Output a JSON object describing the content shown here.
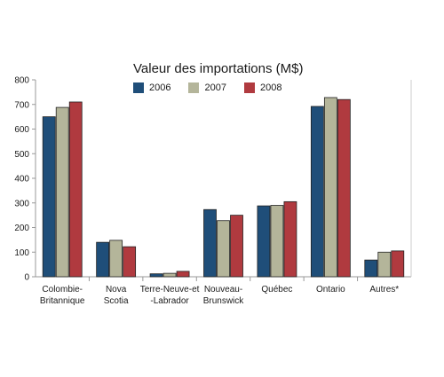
{
  "chart_data": {
    "type": "bar",
    "title": "Valeur des importations (M$)",
    "categories": [
      [
        "Colombie-",
        "Britannique"
      ],
      [
        "Nova",
        "Scotia"
      ],
      [
        "Terre-Neuve-et",
        "-Labrador"
      ],
      [
        "Nouveau-",
        "Brunswick"
      ],
      [
        "Québec"
      ],
      [
        "Ontario"
      ],
      [
        "Autres*"
      ]
    ],
    "series": [
      {
        "name": "2006",
        "color": "#1f4e79",
        "values": [
          650,
          140,
          12,
          273,
          288,
          692,
          68
        ]
      },
      {
        "name": "2007",
        "color": "#b4b59a",
        "values": [
          688,
          148,
          14,
          228,
          290,
          728,
          100
        ]
      },
      {
        "name": "2008",
        "color": "#b03a3f",
        "values": [
          710,
          122,
          22,
          250,
          305,
          720,
          105
        ]
      }
    ],
    "ylim": [
      0,
      800
    ],
    "yticks": [
      0,
      100,
      200,
      300,
      400,
      500,
      600,
      700,
      800
    ],
    "grid": false,
    "legend_position": "top"
  }
}
